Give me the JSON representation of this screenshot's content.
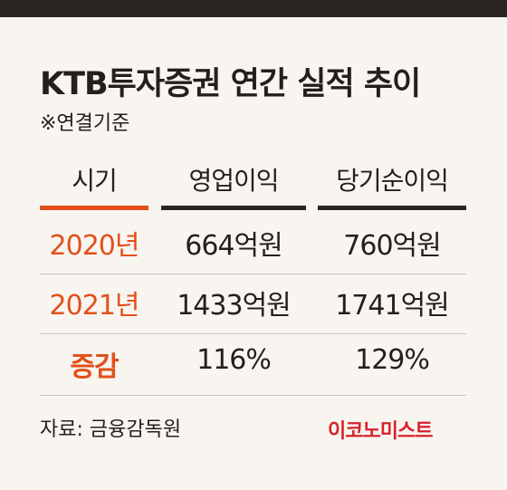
{
  "title": "KTB투자증권 연간 실적 추이",
  "subtitle": "※연결기준",
  "table": {
    "headers": [
      "시기",
      "영업이익",
      "당기순이익"
    ],
    "rows": [
      {
        "period": "2020년",
        "operating_profit": "664억원",
        "net_income": "760억원"
      },
      {
        "period": "2021년",
        "operating_profit": "1433억원",
        "net_income": "1741억원"
      },
      {
        "period": "증감",
        "operating_profit": "116%",
        "net_income": "129%"
      }
    ]
  },
  "source": "자료: 금융감독원",
  "brand": "이코노미스트",
  "colors": {
    "accent": "#e2501a",
    "header_line": "#2a2521",
    "brand": "#d8232a",
    "background": "#f8f5f0"
  }
}
